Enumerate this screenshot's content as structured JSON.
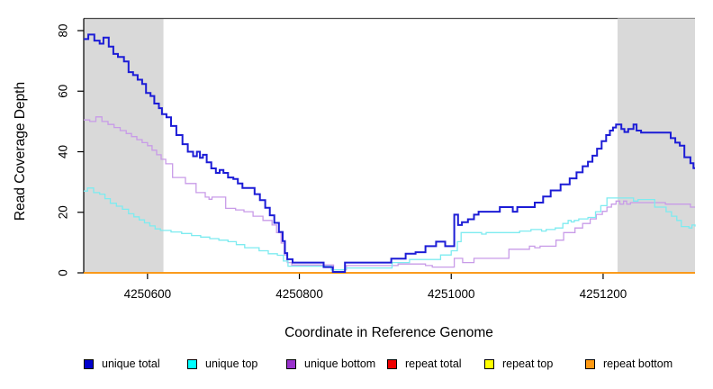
{
  "chart_data": {
    "type": "line",
    "style": "step",
    "title": "",
    "xlabel": "Coordinate in Reference Genome",
    "ylabel": "Read Coverage Depth",
    "x_axis": {
      "range": [
        4250516,
        4251321
      ],
      "ticks": [
        4250600,
        4250800,
        4251000,
        4251200
      ]
    },
    "y_axis": {
      "range": [
        0,
        80
      ],
      "ticks": [
        0,
        20,
        40,
        60,
        80
      ]
    },
    "grid": "off",
    "legend_position": "bottom",
    "shaded_regions": [
      [
        4250516,
        4250621
      ],
      [
        4251219,
        4251321
      ]
    ],
    "shaded_color": "#D9D9D9",
    "series": [
      {
        "id": "repeat_total",
        "name": "repeat total",
        "legend_color": "#EE0000",
        "line_color": "#EE0000",
        "line_width": 1.2,
        "points": [
          [
            4250516,
            0
          ],
          [
            4251321,
            0
          ]
        ]
      },
      {
        "id": "repeat_top",
        "name": "repeat top",
        "legend_color": "#FFFF00",
        "line_color": "#FFFF00",
        "line_width": 1.2,
        "points": [
          [
            4250516,
            0
          ],
          [
            4251321,
            0
          ]
        ]
      },
      {
        "id": "repeat_bottom",
        "name": "repeat bottom",
        "legend_color": "#FF9912",
        "line_color": "#FF9912",
        "line_width": 1.7,
        "points": [
          [
            4250516,
            0
          ],
          [
            4251321,
            0
          ]
        ]
      },
      {
        "id": "unique_bottom",
        "name": "unique bottom",
        "legend_color": "#9A32CD",
        "line_color": "#C89BE8",
        "line_width": 1.3,
        "points": [
          [
            4250516,
            50.5
          ],
          [
            4250524,
            50
          ],
          [
            4250532,
            51.5
          ],
          [
            4250540,
            50
          ],
          [
            4250548,
            49
          ],
          [
            4250556,
            48
          ],
          [
            4250564,
            47
          ],
          [
            4250572,
            46
          ],
          [
            4250579,
            45
          ],
          [
            4250586,
            44
          ],
          [
            4250593,
            43
          ],
          [
            4250600,
            42
          ],
          [
            4250606,
            40.5
          ],
          [
            4250612,
            39
          ],
          [
            4250618,
            37.5
          ],
          [
            4250624,
            36
          ],
          [
            4250633,
            31.5
          ],
          [
            4250650,
            29.5
          ],
          [
            4250664,
            26.5
          ],
          [
            4250676,
            25
          ],
          [
            4250681,
            24.3
          ],
          [
            4250685,
            25
          ],
          [
            4250703,
            21.3
          ],
          [
            4250716,
            20.8
          ],
          [
            4250727,
            20.2
          ],
          [
            4250739,
            18.7
          ],
          [
            4250752,
            17.3
          ],
          [
            4250764,
            15.8
          ],
          [
            4250770,
            13.3
          ],
          [
            4250776,
            9.8
          ],
          [
            4250780,
            5.9
          ],
          [
            4250784,
            3.4
          ],
          [
            4250790,
            2.6
          ],
          [
            4250845,
            1
          ],
          [
            4250862,
            2.4
          ],
          [
            4250930,
            2.9
          ],
          [
            4250966,
            2.4
          ],
          [
            4250975,
            1.9
          ],
          [
            4251004,
            4.8
          ],
          [
            4251015,
            3.4
          ],
          [
            4251030,
            4.8
          ],
          [
            4251076,
            7.8
          ],
          [
            4251103,
            8.8
          ],
          [
            4251110,
            8.3
          ],
          [
            4251117,
            8.8
          ],
          [
            4251138,
            10.8
          ],
          [
            4251148,
            13.3
          ],
          [
            4251163,
            14.8
          ],
          [
            4251173,
            16.3
          ],
          [
            4251183,
            17.8
          ],
          [
            4251191,
            19.3
          ],
          [
            4251199,
            20.3
          ],
          [
            4251205,
            21.7
          ],
          [
            4251211,
            22.7
          ],
          [
            4251217,
            23.7
          ],
          [
            4251222,
            22.7
          ],
          [
            4251227,
            23.7
          ],
          [
            4251231,
            22.7
          ],
          [
            4251236,
            23.2
          ],
          [
            4251282,
            22.7
          ],
          [
            4251315,
            21.7
          ],
          [
            4251321,
            21.7
          ]
        ]
      },
      {
        "id": "unique_top",
        "name": "unique top",
        "legend_color": "#00FFFF",
        "line_color": "#7DEBF0",
        "line_width": 1.3,
        "points": [
          [
            4250516,
            27
          ],
          [
            4250521,
            28
          ],
          [
            4250529,
            26.5
          ],
          [
            4250537,
            26
          ],
          [
            4250544,
            24.5
          ],
          [
            4250551,
            23
          ],
          [
            4250559,
            22
          ],
          [
            4250567,
            21
          ],
          [
            4250575,
            19.5
          ],
          [
            4250582,
            18.5
          ],
          [
            4250589,
            17.5
          ],
          [
            4250596,
            16.5
          ],
          [
            4250603,
            15.5
          ],
          [
            4250610,
            14.5
          ],
          [
            4250617,
            14
          ],
          [
            4250631,
            13.5
          ],
          [
            4250645,
            13
          ],
          [
            4250658,
            12.3
          ],
          [
            4250670,
            11.8
          ],
          [
            4250682,
            11.3
          ],
          [
            4250694,
            10.8
          ],
          [
            4250706,
            10.3
          ],
          [
            4250717,
            9.3
          ],
          [
            4250728,
            8.3
          ],
          [
            4250747,
            7.3
          ],
          [
            4250759,
            6.3
          ],
          [
            4250771,
            5.8
          ],
          [
            4250779,
            3.9
          ],
          [
            4250785,
            2.2
          ],
          [
            4250842,
            1
          ],
          [
            4250861,
            1.6
          ],
          [
            4250922,
            3.4
          ],
          [
            4250945,
            4.4
          ],
          [
            4250986,
            5.9
          ],
          [
            4251000,
            7.3
          ],
          [
            4251008,
            10.3
          ],
          [
            4251013,
            13.3
          ],
          [
            4251040,
            12.8
          ],
          [
            4251046,
            13.3
          ],
          [
            4251090,
            13.8
          ],
          [
            4251105,
            14.3
          ],
          [
            4251119,
            13.8
          ],
          [
            4251125,
            14.3
          ],
          [
            4251137,
            14.8
          ],
          [
            4251147,
            16.3
          ],
          [
            4251154,
            17.3
          ],
          [
            4251158,
            16.8
          ],
          [
            4251162,
            17.3
          ],
          [
            4251168,
            17.8
          ],
          [
            4251180,
            18.3
          ],
          [
            4251190,
            20.2
          ],
          [
            4251197,
            22.2
          ],
          [
            4251205,
            24.7
          ],
          [
            4251237,
            24.7
          ],
          [
            4251240,
            23.7
          ],
          [
            4251246,
            24.2
          ],
          [
            4251268,
            21.7
          ],
          [
            4251283,
            20.2
          ],
          [
            4251290,
            18.7
          ],
          [
            4251297,
            17.3
          ],
          [
            4251303,
            15.3
          ],
          [
            4251313,
            14.8
          ],
          [
            4251317,
            15.8
          ],
          [
            4251321,
            15.3
          ]
        ]
      },
      {
        "id": "unique_total",
        "name": "unique total",
        "legend_color": "#0000CD",
        "line_color": "#1C1CD6",
        "line_width": 2,
        "points": [
          [
            4250516,
            77.2
          ],
          [
            4250522,
            78.7
          ],
          [
            4250530,
            76.7
          ],
          [
            4250537,
            75.7
          ],
          [
            4250542,
            77.7
          ],
          [
            4250549,
            74.7
          ],
          [
            4250555,
            72.3
          ],
          [
            4250561,
            71.3
          ],
          [
            4250569,
            69.8
          ],
          [
            4250575,
            66.3
          ],
          [
            4250581,
            65.3
          ],
          [
            4250587,
            63.8
          ],
          [
            4250593,
            62.4
          ],
          [
            4250598,
            59.4
          ],
          [
            4250604,
            58.4
          ],
          [
            4250609,
            55.9
          ],
          [
            4250615,
            54.4
          ],
          [
            4250619,
            52.4
          ],
          [
            4250625,
            51.4
          ],
          [
            4250631,
            48.5
          ],
          [
            4250638,
            45.5
          ],
          [
            4250646,
            42.5
          ],
          [
            4250653,
            40
          ],
          [
            4250660,
            38.5
          ],
          [
            4250665,
            40
          ],
          [
            4250669,
            38
          ],
          [
            4250673,
            39
          ],
          [
            4250678,
            36.5
          ],
          [
            4250684,
            34.5
          ],
          [
            4250690,
            33
          ],
          [
            4250695,
            34
          ],
          [
            4250700,
            33
          ],
          [
            4250706,
            31.5
          ],
          [
            4250713,
            31
          ],
          [
            4250719,
            29.5
          ],
          [
            4250725,
            28
          ],
          [
            4250741,
            26
          ],
          [
            4250748,
            24
          ],
          [
            4250755,
            21.5
          ],
          [
            4250761,
            19
          ],
          [
            4250767,
            16.5
          ],
          [
            4250773,
            13.5
          ],
          [
            4250778,
            10.5
          ],
          [
            4250781,
            6.5
          ],
          [
            4250784,
            4.5
          ],
          [
            4250791,
            3.4
          ],
          [
            4250832,
            1.9
          ],
          [
            4250844,
            0.3
          ],
          [
            4250860,
            3.4
          ],
          [
            4250921,
            4.7
          ],
          [
            4250940,
            6.3
          ],
          [
            4250953,
            6.8
          ],
          [
            4250966,
            8.8
          ],
          [
            4250980,
            10.3
          ],
          [
            4250992,
            8.8
          ],
          [
            4251004,
            19.2
          ],
          [
            4251009,
            15.8
          ],
          [
            4251014,
            16.7
          ],
          [
            4251022,
            17.7
          ],
          [
            4251030,
            19.2
          ],
          [
            4251036,
            20.2
          ],
          [
            4251064,
            21.7
          ],
          [
            4251081,
            20.2
          ],
          [
            4251087,
            21.7
          ],
          [
            4251110,
            23.2
          ],
          [
            4251121,
            25.2
          ],
          [
            4251131,
            27.2
          ],
          [
            4251144,
            29.2
          ],
          [
            4251156,
            31.2
          ],
          [
            4251165,
            33.2
          ],
          [
            4251173,
            35.2
          ],
          [
            4251180,
            36.7
          ],
          [
            4251186,
            38.7
          ],
          [
            4251192,
            41
          ],
          [
            4251198,
            43.5
          ],
          [
            4251204,
            45.5
          ],
          [
            4251209,
            47
          ],
          [
            4251213,
            48
          ],
          [
            4251217,
            49
          ],
          [
            4251224,
            47.5
          ],
          [
            4251228,
            46.5
          ],
          [
            4251233,
            47.5
          ],
          [
            4251240,
            49
          ],
          [
            4251244,
            47
          ],
          [
            4251250,
            46.3
          ],
          [
            4251289,
            44.5
          ],
          [
            4251295,
            43
          ],
          [
            4251301,
            42
          ],
          [
            4251307,
            38.2
          ],
          [
            4251315,
            36.2
          ],
          [
            4251319,
            34.6
          ]
        ]
      }
    ],
    "legend": [
      {
        "label": "unique total"
      },
      {
        "label": "unique top"
      },
      {
        "label": "unique bottom"
      },
      {
        "label": "repeat total"
      },
      {
        "label": "repeat top"
      },
      {
        "label": "repeat bottom"
      }
    ]
  }
}
